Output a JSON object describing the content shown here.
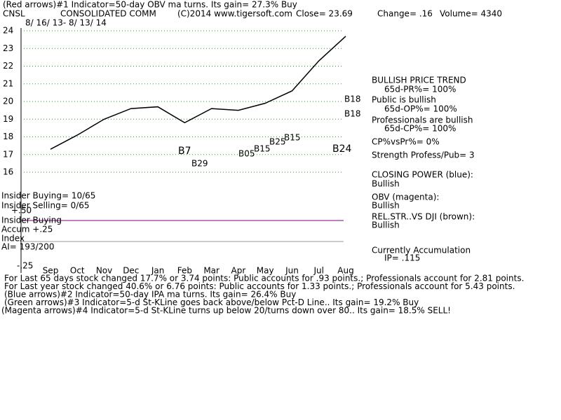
{
  "chart_data": {
    "type": "line",
    "title": "(Red arrows)#1 Indicator=50-day OBV ma turns.  Its gain= 27.3% Buy",
    "header": [
      "CNSL",
      "CONSOLIDATED COMM",
      "(C)2014 www.tigersoft.com",
      "Close=  23.69",
      "Change= .16",
      "Volume= 4340"
    ],
    "date_range": "8/ 16/ 13- 8/ 13/ 14",
    "categories": [
      "Sep",
      "Oct",
      "Nov",
      "Dec",
      "Jan",
      "Feb",
      "Mar",
      "Apr",
      "May",
      "Jun",
      "Jul",
      "Aug"
    ],
    "values": [
      17.3,
      18.1,
      19.0,
      19.6,
      19.7,
      18.8,
      19.6,
      19.5,
      19.9,
      20.6,
      22.3,
      23.69
    ],
    "color": "#000000",
    "ylim": [
      16,
      24
    ],
    "yticks": [
      16,
      17,
      18,
      19,
      20,
      21,
      22,
      23,
      24
    ],
    "grid": true,
    "annotations": [
      "B7",
      "B29",
      "B05",
      "B15",
      "B25",
      "B15",
      "B18",
      "B18",
      "B24"
    ],
    "left_labels": [
      "Insider Buying= 10/65",
      "Insider Selling= 0/65",
      "+.50",
      "Insider Buying",
      "Accum  +.25",
      "Index",
      "AI= 193/200",
      "-.25"
    ],
    "right_panel": [
      "BULLISH PRICE TREND",
      "65d-PR%= 100%",
      "Public is bullish",
      "65d-OP%= 100%",
      "Professionals are bullish",
      "65d-CP%= 100%",
      "CP%vsPr%=  0%",
      "Strength Profess/Pub= 3",
      "CLOSING POWER (blue):",
      "Bullish",
      "OBV (magenta):",
      "Bullish",
      "REL.STR..VS DJI (brown):",
      "Bullish",
      "Currently Accumulation",
      "IP=  .115"
    ],
    "footer": [
      "For Last 65 days stock changed  17.7% or  3.74 points:  Public accounts for  .93 points.;  Professionals account for  2.81 points.",
      "For Last year stock changed  40.6% or  6.76 points:  Public accounts for  1.33 points.;  Professionals account for  5.43 points.",
      "(Blue arrows)#2 Indicator=50-day IPA ma turns.  Its gain= 26.4% Buy",
      "(Green arrows)#3 Indicator=5-d St-KLine goes back above/below Pct-D Line..  Its gain= 19.2% Buy",
      "(Magenta arrows)#4 Indicator=5-d St-KLine turns up below 20/turns down over 80..  Its gain= 18.5% SELL!"
    ]
  }
}
